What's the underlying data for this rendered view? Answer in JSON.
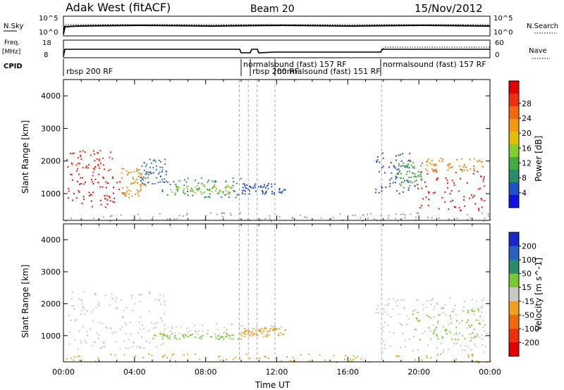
{
  "header": {
    "station": "Adak West (fitACF)",
    "beam": "Beam 20",
    "date": "15/Nov/2012"
  },
  "top_panels": {
    "nsky_label": "N.Sky",
    "nsky_ticks": [
      "10^5",
      "10^0"
    ],
    "nsearch_label": "N.Search",
    "nsearch_ticks": [
      "10^5",
      "10^0"
    ],
    "freq_label_1": "Freq.",
    "freq_label_2": "[MHz]",
    "freq_ticks": [
      "18",
      "8"
    ],
    "nave_label": "Nave",
    "nave_ticks": [
      "60",
      "0"
    ],
    "cpid_label": "CPID",
    "cpid_segments": [
      {
        "label": "rbsp 200 RF"
      },
      {
        "label": "normalsound (fast) 157 RF"
      },
      {
        "label": "rbsp 200 RF"
      },
      {
        "label": "normalsound (fast) 151 RF"
      },
      {
        "label": "normalsound (fast) 157 RF"
      }
    ]
  },
  "chart_data": [
    {
      "type": "heatmap",
      "title": "",
      "ylabel": "Slant Range [km]",
      "ylim": [
        180,
        4500
      ],
      "yticks": [
        1000,
        2000,
        3000,
        4000
      ],
      "xlim": [
        0,
        24
      ],
      "colorbar": {
        "label": "Power [dB]",
        "ticks": [
          "4",
          "8",
          "12",
          "16",
          "20",
          "24",
          "28"
        ],
        "colors": [
          "#1010e0",
          "#2050c8",
          "#2a8a6a",
          "#44aa44",
          "#88cc33",
          "#e0c000",
          "#f59a10",
          "#f26a10",
          "#ee3010",
          "#e00000"
        ]
      },
      "scatter_bands": [
        {
          "t0": 0.2,
          "t1": 3.4,
          "r0": 600,
          "r1": 1500,
          "color": "#e81010"
        },
        {
          "t0": 0.1,
          "t1": 2.8,
          "r0": 1500,
          "r1": 2350,
          "color": "#ee2a10"
        },
        {
          "t0": 3.2,
          "t1": 4.6,
          "r0": 900,
          "r1": 1800,
          "color": "#f08a10"
        },
        {
          "t0": 4.3,
          "t1": 5.8,
          "r0": 1300,
          "r1": 2100,
          "color": "#3a70b8"
        },
        {
          "t0": 5.5,
          "t1": 10.0,
          "r0": 900,
          "r1": 1500,
          "color": "#2a8a6a"
        },
        {
          "t0": 6.0,
          "t1": 9.5,
          "r0": 1000,
          "r1": 1300,
          "color": "#88cc33"
        },
        {
          "t0": 10.0,
          "t1": 12.5,
          "r0": 1000,
          "r1": 1350,
          "color": "#2a50c0"
        },
        {
          "t0": 17.5,
          "t1": 19.5,
          "r0": 1000,
          "r1": 2300,
          "color": "#2a50c0"
        },
        {
          "t0": 18.8,
          "t1": 20.2,
          "r0": 1200,
          "r1": 2000,
          "color": "#44aa44"
        },
        {
          "t0": 19.8,
          "t1": 23.8,
          "r0": 500,
          "r1": 1800,
          "color": "#e81010"
        },
        {
          "t0": 20.3,
          "t1": 23.6,
          "r0": 1700,
          "r1": 2100,
          "color": "#f08a10"
        },
        {
          "t0": 0.0,
          "t1": 24.0,
          "r0": 180,
          "r1": 450,
          "color": "#a0a0a0"
        }
      ]
    },
    {
      "type": "heatmap",
      "title": "",
      "ylabel": "Slant Range [km]",
      "ylim": [
        180,
        4500
      ],
      "yticks": [
        1000,
        2000,
        3000,
        4000
      ],
      "xlim": [
        0,
        24
      ],
      "xlabel": "Time UT",
      "xticks": [
        "00:00",
        "04:00",
        "08:00",
        "12:00",
        "16:00",
        "20:00",
        "00:00"
      ],
      "colorbar": {
        "label": "Velocity [m s^-1]",
        "ticks": [
          "200",
          "100",
          "50",
          "15",
          "-15",
          "-50",
          "-100",
          "-200"
        ],
        "colors": [
          "#1a28c8",
          "#2a60c0",
          "#2a8a6a",
          "#7ac832",
          "#c8c8c8",
          "#f0a020",
          "#f06a10",
          "#ee3010",
          "#e00000"
        ]
      },
      "scatter_bands": [
        {
          "t0": 0.2,
          "t1": 5.8,
          "r0": 600,
          "r1": 2400,
          "color": "#c8c8c8"
        },
        {
          "t0": 5.5,
          "t1": 12.4,
          "r0": 950,
          "r1": 1400,
          "color": "#c8c8c8"
        },
        {
          "t0": 5.0,
          "t1": 10.0,
          "r0": 900,
          "r1": 1100,
          "color": "#7ac832"
        },
        {
          "t0": 10.0,
          "t1": 12.5,
          "r0": 1000,
          "r1": 1250,
          "color": "#f0a020"
        },
        {
          "t0": 17.5,
          "t1": 23.8,
          "r0": 500,
          "r1": 2200,
          "color": "#c8c8c8"
        },
        {
          "t0": 19.5,
          "t1": 23.5,
          "r0": 800,
          "r1": 1900,
          "color": "#7ac832"
        },
        {
          "t0": 0.0,
          "t1": 24.0,
          "r0": 180,
          "r1": 450,
          "color": "#f0a020"
        }
      ]
    }
  ]
}
